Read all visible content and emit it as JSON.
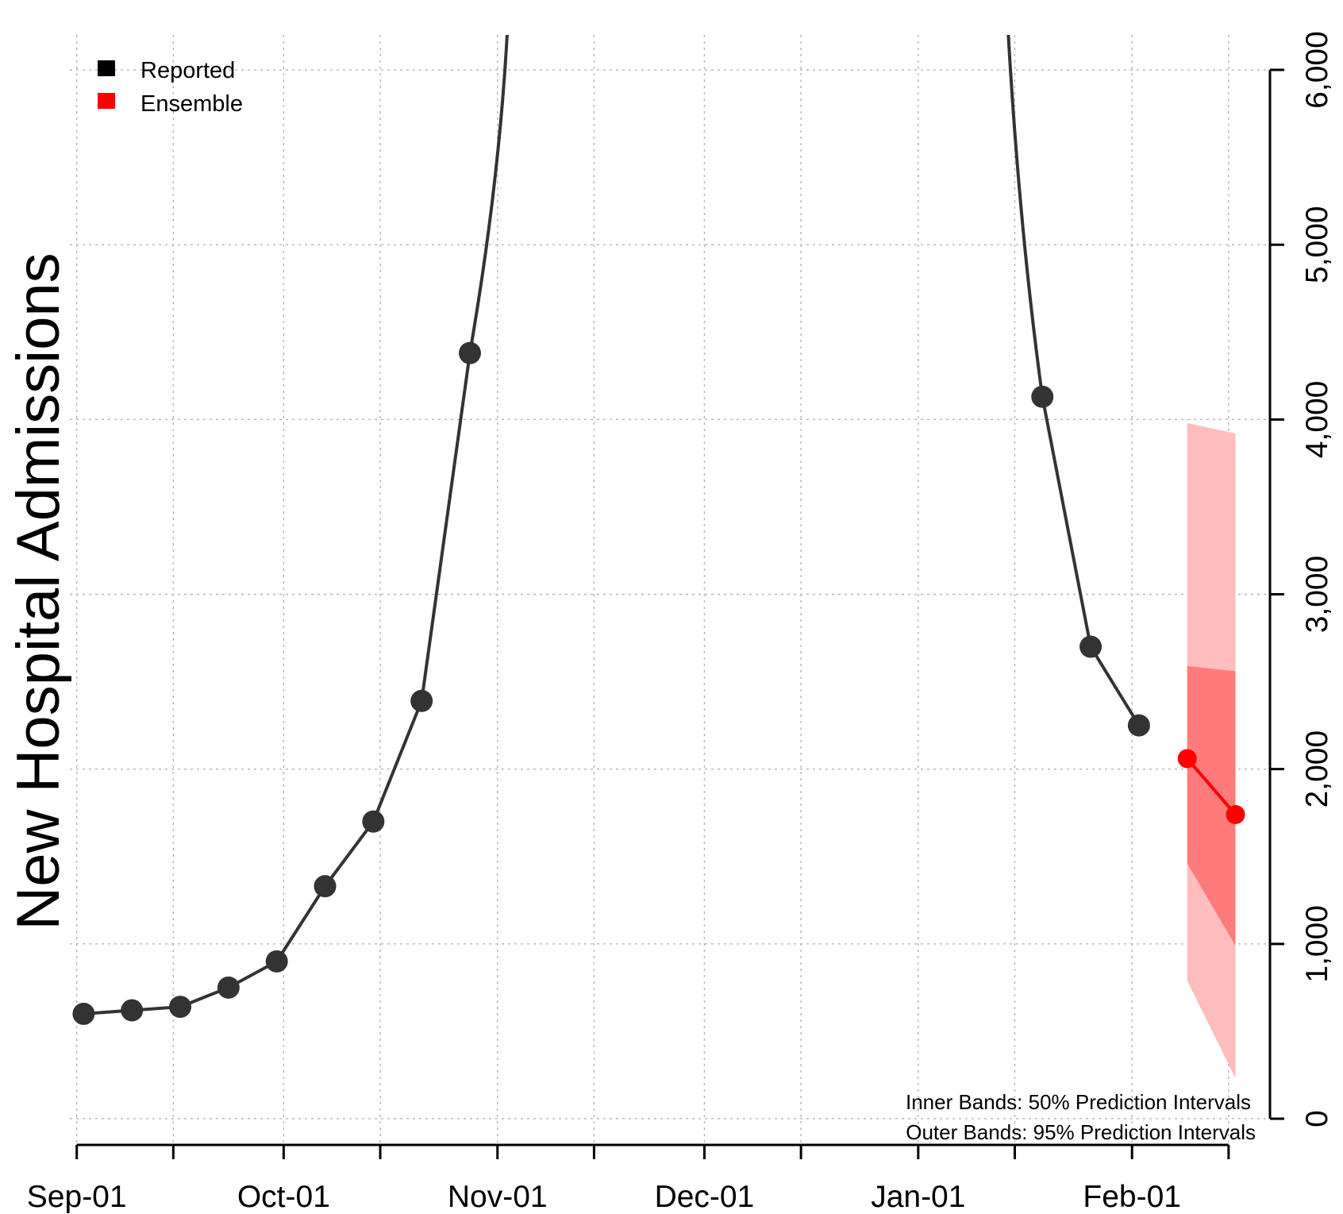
{
  "chart_data": {
    "type": "line",
    "title": "",
    "xlabel": "",
    "ylabel": "New Hospital Admissions",
    "x_ticks": [
      "2020-09-01",
      "2020-09-15",
      "2020-10-01",
      "2020-10-15",
      "2020-11-01",
      "2020-11-15",
      "2020-12-01",
      "2020-12-15",
      "2021-01-01",
      "2021-01-15",
      "2021-02-01",
      "2021-02-15"
    ],
    "x_tick_labels": [
      "Sep-01",
      "",
      "Oct-01",
      "",
      "Nov-01",
      "",
      "Dec-01",
      "",
      "Jan-01",
      "",
      "Feb-01",
      ""
    ],
    "x_range": [
      "2020-08-31",
      "2021-02-21"
    ],
    "y_ticks": [
      0,
      1000,
      2000,
      3000,
      4000,
      5000,
      6000
    ],
    "y_tick_labels": [
      "0",
      "1,000",
      "2,000",
      "3,000",
      "4,000",
      "5,000",
      "6,000"
    ],
    "ylim": [
      -150,
      6200
    ],
    "y_axis_side": "right",
    "grid": true,
    "legend_position": "top-left",
    "series": [
      {
        "name": "Reported",
        "color": "#000000",
        "x": [
          "2020-09-02",
          "2020-09-09",
          "2020-09-16",
          "2020-09-23",
          "2020-09-30",
          "2020-10-07",
          "2020-10-14",
          "2020-10-21",
          "2020-10-28",
          "2021-01-19",
          "2021-01-26",
          "2021-02-02"
        ],
        "y": [
          600,
          620,
          640,
          750,
          900,
          1330,
          1700,
          2390,
          4380,
          4130,
          2700,
          2250
        ]
      },
      {
        "name": "Ensemble",
        "color": "#ff0000",
        "x": [
          "2021-02-09",
          "2021-02-16"
        ],
        "y": [
          2060,
          1740
        ],
        "intervals": [
          {
            "level": "50%",
            "lower": [
              1460,
              990
            ],
            "upper": [
              2590,
              2560
            ]
          },
          {
            "level": "95%",
            "lower": [
              790,
              230
            ],
            "upper": [
              3980,
              3920
            ]
          }
        ]
      }
    ],
    "annotations": [
      "Inner Bands: 50% Prediction Intervals",
      "Outer Bands: 95% Prediction Intervals"
    ]
  }
}
